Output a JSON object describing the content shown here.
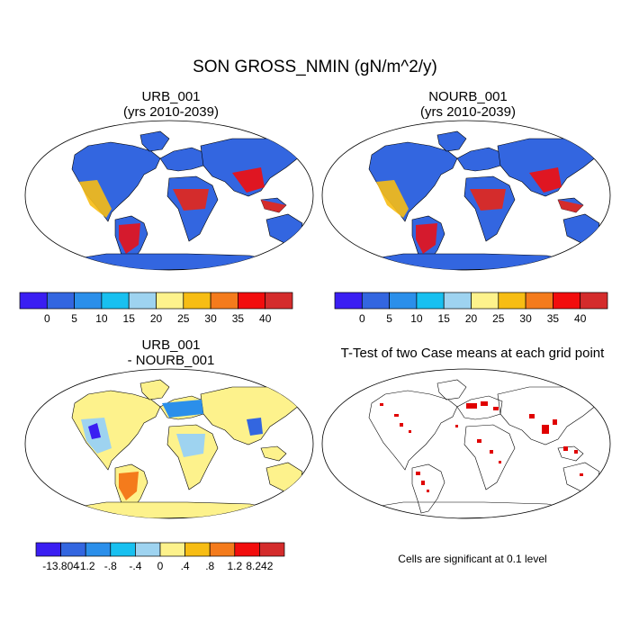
{
  "title": "SON GROSS_NMIN (gN/m^2/y)",
  "panels": {
    "urb": {
      "title_line1": "URB_001",
      "title_line2": "(yrs 2010-2039)"
    },
    "nourb": {
      "title_line1": "NOURB_001",
      "title_line2": "(yrs 2010-2039)"
    },
    "diff": {
      "title_line1": "URB_001",
      "title_line2": "- NOURB_001"
    },
    "ttest": {
      "title": "T-Test of two Case means at each grid point"
    }
  },
  "colorbar_abs": {
    "labels": [
      "0",
      "5",
      "10",
      "15",
      "20",
      "25",
      "30",
      "35",
      "40"
    ],
    "colors": [
      "#3a1ef2",
      "#3366e0",
      "#2b8fea",
      "#18c0f0",
      "#9ed3f0",
      "#fdf28c",
      "#f7bd14",
      "#f47b1c",
      "#f20d0d",
      "#d42c2c"
    ]
  },
  "colorbar_diff": {
    "labels": [
      "-13.804",
      "-1.2",
      "-.8",
      "-.4",
      "0",
      ".4",
      ".8",
      "1.2",
      "8.242"
    ],
    "colors": [
      "#3a1ef2",
      "#3366e0",
      "#2b8fea",
      "#18c0f0",
      "#9ed3f0",
      "#fdf28c",
      "#f7bd14",
      "#f47b1c",
      "#f20d0d",
      "#d42c2c"
    ]
  },
  "significance_note": "Cells are significant at 0.1 level",
  "significance_color": "#e00000",
  "ocean_color": "#ffffff"
}
